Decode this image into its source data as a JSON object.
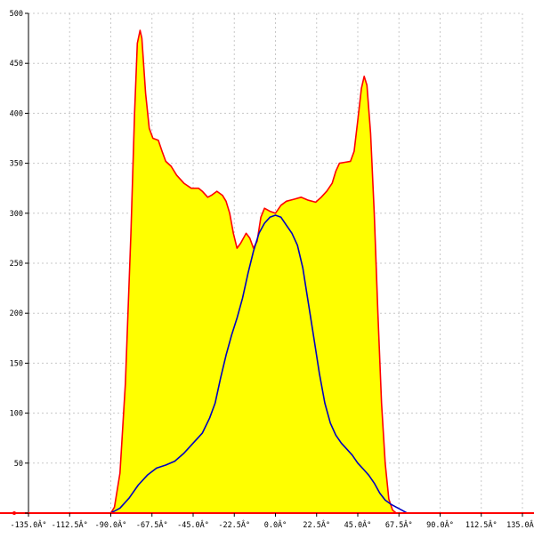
{
  "chart_data": {
    "type": "area",
    "xlim": [
      -135,
      135
    ],
    "ylim": [
      0,
      500
    ],
    "grid": true,
    "legend": "none",
    "x_ticks": [
      -135,
      -112.5,
      -90,
      -67.5,
      -45,
      -22.5,
      0,
      22.5,
      45,
      67.5,
      90,
      112.5,
      135
    ],
    "x_tick_labels": [
      "-135.0Â°",
      "-112.5Â°",
      "-90.0Â°",
      "-67.5Â°",
      "-45.0Â°",
      "-22.5Â°",
      "0.0Â°",
      "22.5Â°",
      "45.0Â°",
      "67.5Â°",
      "90.0Â°",
      "112.5Â°",
      "135.0Â°"
    ],
    "y_ticks": [
      0,
      50,
      100,
      150,
      200,
      250,
      300,
      350,
      400,
      450,
      500
    ],
    "y_tick_labels": [
      "0",
      "50",
      "100",
      "150",
      "200",
      "250",
      "300",
      "350",
      "400",
      "450",
      "500"
    ],
    "series": [
      {
        "kind": "filled-area",
        "fill": "#ffff00",
        "stroke": "#ff0000",
        "points": [
          [
            -90,
            0
          ],
          [
            -88,
            6
          ],
          [
            -85,
            40
          ],
          [
            -82,
            130
          ],
          [
            -79,
            280
          ],
          [
            -77,
            400
          ],
          [
            -75.5,
            470
          ],
          [
            -74,
            483
          ],
          [
            -73,
            475
          ],
          [
            -71,
            420
          ],
          [
            -69,
            385
          ],
          [
            -67,
            375
          ],
          [
            -64,
            373
          ],
          [
            -62,
            362
          ],
          [
            -60,
            352
          ],
          [
            -57,
            347
          ],
          [
            -54,
            338
          ],
          [
            -50,
            330
          ],
          [
            -46,
            325
          ],
          [
            -42,
            325
          ],
          [
            -40,
            322
          ],
          [
            -37,
            316
          ],
          [
            -35,
            318
          ],
          [
            -32,
            322
          ],
          [
            -29,
            318
          ],
          [
            -27,
            312
          ],
          [
            -25,
            300
          ],
          [
            -23,
            280
          ],
          [
            -21,
            265
          ],
          [
            -19,
            270
          ],
          [
            -16,
            280
          ],
          [
            -14,
            275
          ],
          [
            -12,
            265
          ],
          [
            -10,
            272
          ],
          [
            -8,
            296
          ],
          [
            -6,
            305
          ],
          [
            -3,
            302
          ],
          [
            0,
            300
          ],
          [
            3,
            308
          ],
          [
            6,
            312
          ],
          [
            10,
            314
          ],
          [
            14,
            316
          ],
          [
            18,
            313
          ],
          [
            22,
            311
          ],
          [
            25,
            316
          ],
          [
            28,
            322
          ],
          [
            31,
            330
          ],
          [
            33,
            342
          ],
          [
            35,
            350
          ],
          [
            38,
            351
          ],
          [
            41,
            352
          ],
          [
            43,
            362
          ],
          [
            45,
            393
          ],
          [
            47,
            425
          ],
          [
            48.5,
            437
          ],
          [
            50,
            428
          ],
          [
            52,
            380
          ],
          [
            54,
            300
          ],
          [
            56,
            200
          ],
          [
            58,
            110
          ],
          [
            60,
            50
          ],
          [
            62,
            14
          ],
          [
            64,
            3
          ],
          [
            66,
            0
          ]
        ]
      },
      {
        "kind": "line",
        "stroke": "#0000c0",
        "points": [
          [
            -90,
            0
          ],
          [
            -85,
            5
          ],
          [
            -80,
            15
          ],
          [
            -75,
            28
          ],
          [
            -70,
            38
          ],
          [
            -65,
            45
          ],
          [
            -60,
            48
          ],
          [
            -55,
            52
          ],
          [
            -50,
            60
          ],
          [
            -45,
            70
          ],
          [
            -40,
            80
          ],
          [
            -36,
            95
          ],
          [
            -33,
            110
          ],
          [
            -30,
            135
          ],
          [
            -27,
            158
          ],
          [
            -24,
            178
          ],
          [
            -21,
            195
          ],
          [
            -18,
            215
          ],
          [
            -15,
            240
          ],
          [
            -12,
            262
          ],
          [
            -9,
            280
          ],
          [
            -6,
            290
          ],
          [
            -3,
            296
          ],
          [
            0,
            298
          ],
          [
            3,
            296
          ],
          [
            6,
            288
          ],
          [
            9,
            280
          ],
          [
            12,
            268
          ],
          [
            15,
            245
          ],
          [
            18,
            210
          ],
          [
            21,
            175
          ],
          [
            24,
            140
          ],
          [
            27,
            110
          ],
          [
            30,
            90
          ],
          [
            33,
            78
          ],
          [
            36,
            70
          ],
          [
            39,
            64
          ],
          [
            42,
            58
          ],
          [
            45,
            50
          ],
          [
            48,
            44
          ],
          [
            51,
            38
          ],
          [
            54,
            30
          ],
          [
            57,
            20
          ],
          [
            60,
            13
          ],
          [
            63,
            9
          ],
          [
            66,
            6
          ],
          [
            69,
            3
          ],
          [
            72,
            0
          ]
        ]
      }
    ]
  }
}
